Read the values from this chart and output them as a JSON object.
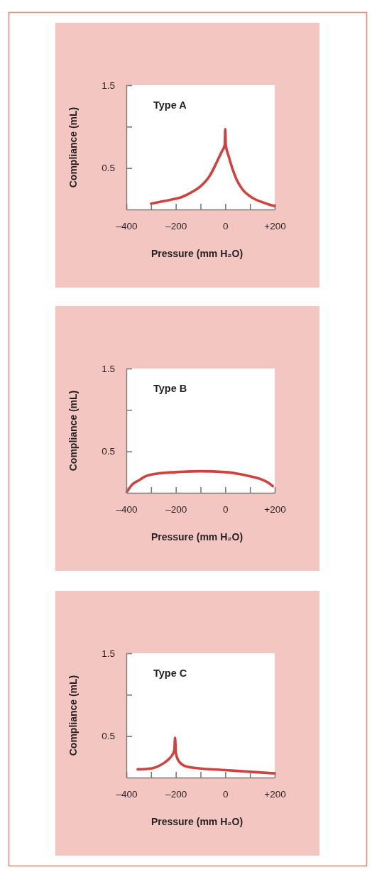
{
  "chart_data": [
    {
      "type": "line",
      "title": "Type A",
      "xlabel": "Pressure (mm H₂O)",
      "ylabel": "Compliance (mL)",
      "xlim": [
        -400,
        200
      ],
      "ylim": [
        0,
        1.5
      ],
      "xticks": [
        {
          "value": -400,
          "label": "–400"
        },
        {
          "value": -300,
          "label": null
        },
        {
          "value": -200,
          "label": "–200"
        },
        {
          "value": -100,
          "label": null
        },
        {
          "value": 0,
          "label": "0"
        },
        {
          "value": 100,
          "label": null
        },
        {
          "value": 200,
          "label": "+200"
        }
      ],
      "yticks": [
        {
          "value": 0.5,
          "label": "0.5"
        },
        {
          "value": 1,
          "label": null
        },
        {
          "value": 1.5,
          "label": "1.5"
        }
      ],
      "grid": false,
      "line_style": "solid",
      "marker": "none",
      "series": [
        {
          "color": "#d1423f",
          "x": [
            -300,
            -250,
            -200,
            -176,
            -129,
            -100,
            -62,
            -33,
            -14,
            -2,
            0,
            2,
            14,
            43,
            70,
            100,
            157,
            200
          ],
          "values": [
            0.07,
            0.1,
            0.13,
            0.15,
            0.22,
            0.28,
            0.41,
            0.58,
            0.7,
            0.78,
            0.97,
            0.78,
            0.64,
            0.38,
            0.24,
            0.16,
            0.08,
            0.04
          ]
        }
      ]
    },
    {
      "type": "line",
      "title": "Type B",
      "xlabel": "Pressure (mm H₂O)",
      "ylabel": "Compliance (mL)",
      "xlim": [
        -400,
        200
      ],
      "ylim": [
        0,
        1.5
      ],
      "xticks": [
        {
          "value": -400,
          "label": "–400"
        },
        {
          "value": -300,
          "label": null
        },
        {
          "value": -200,
          "label": "–200"
        },
        {
          "value": -100,
          "label": null
        },
        {
          "value": 0,
          "label": "0"
        },
        {
          "value": 100,
          "label": null
        },
        {
          "value": 200,
          "label": "+200"
        }
      ],
      "yticks": [
        {
          "value": 0.5,
          "label": "0.5"
        },
        {
          "value": 1,
          "label": null
        },
        {
          "value": 1.5,
          "label": "1.5"
        }
      ],
      "grid": false,
      "line_style": "solid",
      "marker": "none",
      "series": [
        {
          "color": "#d1423f",
          "x": [
            -398,
            -376,
            -350,
            -329,
            -281,
            -200,
            -100,
            0,
            52,
            100,
            148,
            175,
            192
          ],
          "values": [
            0.01,
            0.1,
            0.15,
            0.19,
            0.23,
            0.25,
            0.26,
            0.25,
            0.23,
            0.2,
            0.16,
            0.12,
            0.08
          ]
        }
      ]
    },
    {
      "type": "line",
      "title": "Type C",
      "xlabel": "Pressure (mm H₂O)",
      "ylabel": "Compliance (mL)",
      "xlim": [
        -400,
        200
      ],
      "ylim": [
        0,
        1.5
      ],
      "xticks": [
        {
          "value": -400,
          "label": "–400"
        },
        {
          "value": -300,
          "label": null
        },
        {
          "value": -200,
          "label": "–200"
        },
        {
          "value": -100,
          "label": null
        },
        {
          "value": 0,
          "label": "0"
        },
        {
          "value": 100,
          "label": null
        },
        {
          "value": 200,
          "label": "+200"
        }
      ],
      "yticks": [
        {
          "value": 0.5,
          "label": "0.5"
        },
        {
          "value": 1,
          "label": null
        },
        {
          "value": 1.5,
          "label": "1.5"
        }
      ],
      "grid": false,
      "line_style": "solid",
      "marker": "none",
      "series": [
        {
          "color": "#d1423f",
          "x": [
            -354,
            -300,
            -262,
            -233,
            -215,
            -206,
            -203,
            -200,
            -192,
            -183,
            -154,
            -100,
            0,
            100,
            200
          ],
          "values": [
            0.1,
            0.11,
            0.15,
            0.21,
            0.27,
            0.33,
            0.48,
            0.3,
            0.22,
            0.18,
            0.13,
            0.11,
            0.09,
            0.07,
            0.05
          ]
        }
      ]
    }
  ]
}
